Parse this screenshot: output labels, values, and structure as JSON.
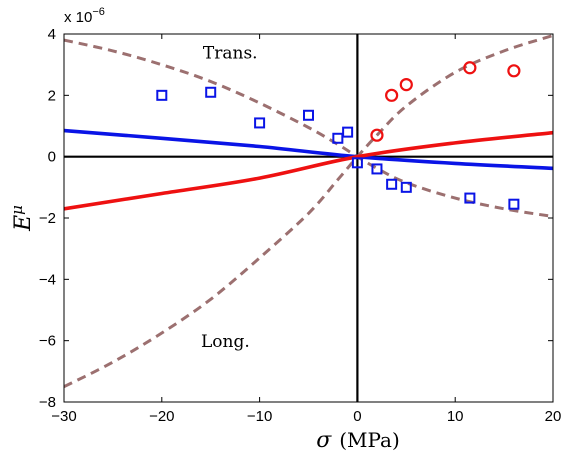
{
  "chart_data": {
    "type": "line",
    "title": "",
    "xlabel": "σ (MPa)",
    "ylabel": "Eμ",
    "xlabel_parts": {
      "symbol": "σ",
      "unit": "(MPa)"
    },
    "ylabel_parts": {
      "base": "E",
      "sup": "μ"
    },
    "y_scale_label": {
      "base": "x 10",
      "exp": "−6"
    },
    "xlim": [
      -30,
      20
    ],
    "ylim": [
      -8,
      4
    ],
    "x_ticks": [
      -30,
      -20,
      -10,
      0,
      10,
      20
    ],
    "y_ticks": [
      -8,
      -6,
      -4,
      -2,
      0,
      2,
      4
    ],
    "x_tick_labels": [
      "−30",
      "−20",
      "−10",
      "0",
      "10",
      "20"
    ],
    "y_tick_labels": [
      "−8",
      "−6",
      "−4",
      "−2",
      "0",
      "2",
      "4"
    ],
    "grid": false,
    "annotations": [
      {
        "text": "Trans.",
        "x": -13,
        "y": 3.2
      },
      {
        "text": "Long.",
        "x": -13.5,
        "y": -6.2
      }
    ],
    "series": [
      {
        "style": "dashed",
        "color": "#9c7070",
        "x": [
          -30,
          -25,
          -20,
          -15,
          -10,
          -5,
          -2,
          0,
          2,
          5,
          10,
          15,
          20
        ],
        "y": [
          3.8,
          3.45,
          3.0,
          2.45,
          1.75,
          0.95,
          0.4,
          0,
          -0.38,
          -0.85,
          -1.35,
          -1.7,
          -1.95
        ]
      },
      {
        "style": "dashed",
        "color": "#9c7070",
        "x": [
          -30,
          -25,
          -20,
          -15,
          -10,
          -5,
          -2,
          0,
          2,
          5,
          10,
          15,
          20
        ],
        "y": [
          -7.5,
          -6.7,
          -5.75,
          -4.65,
          -3.3,
          -1.85,
          -0.75,
          0,
          0.7,
          1.65,
          2.75,
          3.45,
          3.95
        ]
      },
      {
        "style": "solid",
        "color": "#0a14e6",
        "x": [
          -30,
          -20,
          -10,
          0,
          10,
          20
        ],
        "y": [
          0.85,
          0.6,
          0.33,
          0,
          -0.22,
          -0.38
        ]
      },
      {
        "style": "solid",
        "color": "#ee1111",
        "x": [
          -30,
          -20,
          -10,
          0,
          10,
          20
        ],
        "y": [
          -1.7,
          -1.2,
          -0.7,
          0,
          0.45,
          0.78
        ]
      },
      {
        "marker": "square",
        "color": "#0a14e6",
        "x": [
          -20,
          -15,
          -10,
          -5,
          -2,
          -1,
          0,
          2,
          3.5,
          5,
          11.5,
          16
        ],
        "y": [
          2.0,
          2.1,
          1.1,
          1.35,
          0.6,
          0.8,
          -0.2,
          -0.4,
          -0.9,
          -1.0,
          -1.35,
          -1.55
        ]
      },
      {
        "marker": "circle",
        "color": "#ee1111",
        "x": [
          2,
          3.5,
          5,
          11.5,
          16
        ],
        "y": [
          0.7,
          2.0,
          2.35,
          2.9,
          2.8
        ]
      }
    ]
  }
}
